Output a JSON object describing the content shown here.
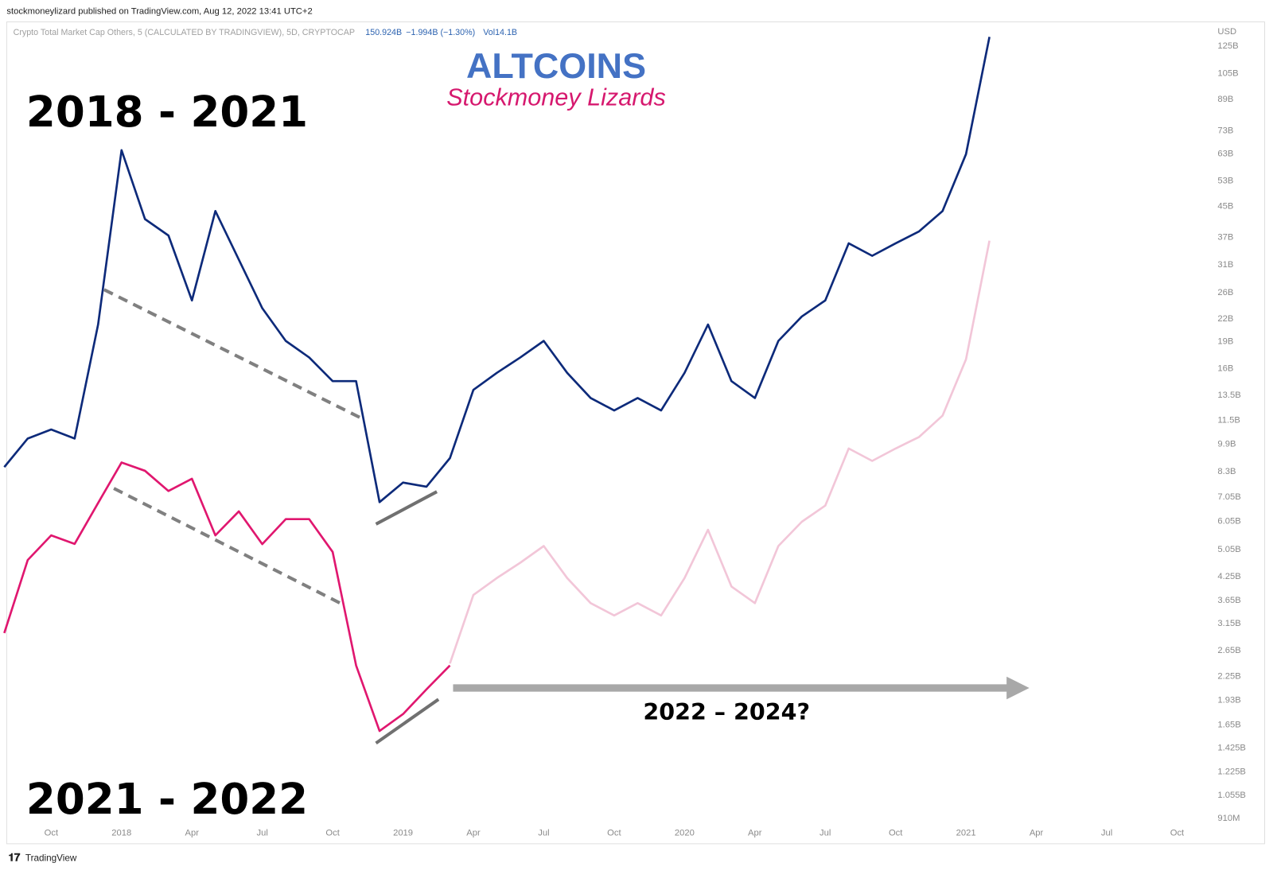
{
  "chart_data": {
    "type": "line",
    "published": "stockmoneylizard published on TradingView.com, Aug 12, 2022 13:41 UTC+2",
    "symbol": "Crypto Total Market Cap Others, 5 (CALCULATED BY TRADINGVIEW), 5D, CRYPTOCAP",
    "last": "150.924B",
    "change": "−1.994B (−1.30%)",
    "volume": "Vol14.1B",
    "title": "ALTCOINS",
    "subtitle": "Stockmoney Lizards",
    "annotations": [
      "2022 – 2024?"
    ],
    "footer": "TradingView",
    "y_unit": "USD",
    "log_scale": true,
    "grid": false,
    "x": [
      "2017-08",
      "2017-09",
      "2017-10",
      "2017-11",
      "2017-12",
      "2018-01",
      "2018-02",
      "2018-03",
      "2018-04",
      "2018-05",
      "2018-06",
      "2018-07",
      "2018-08",
      "2018-09",
      "2018-10",
      "2018-11",
      "2018-12",
      "2019-01",
      "2019-02",
      "2019-03",
      "2019-04",
      "2019-05",
      "2019-06",
      "2019-07",
      "2019-08",
      "2019-09",
      "2019-10",
      "2019-11",
      "2019-12",
      "2020-01",
      "2020-02",
      "2020-03",
      "2020-04",
      "2020-05",
      "2020-06",
      "2020-07",
      "2020-08",
      "2020-09",
      "2020-10",
      "2020-11",
      "2020-12",
      "2021-01",
      "2021-02"
    ],
    "xlim": [
      "2017-08",
      "2021-11"
    ],
    "xticks": [
      {
        "value": "2017-10",
        "label": "Oct"
      },
      {
        "value": "2018-01",
        "label": "2018"
      },
      {
        "value": "2018-04",
        "label": "Apr"
      },
      {
        "value": "2018-07",
        "label": "Jul"
      },
      {
        "value": "2018-10",
        "label": "Oct"
      },
      {
        "value": "2019-01",
        "label": "2019"
      },
      {
        "value": "2019-04",
        "label": "Apr"
      },
      {
        "value": "2019-07",
        "label": "Jul"
      },
      {
        "value": "2019-10",
        "label": "Oct"
      },
      {
        "value": "2020-01",
        "label": "2020"
      },
      {
        "value": "2020-04",
        "label": "Apr"
      },
      {
        "value": "2020-07",
        "label": "Jul"
      },
      {
        "value": "2020-10",
        "label": "Oct"
      },
      {
        "value": "2021-01",
        "label": "2021"
      },
      {
        "value": "2021-04",
        "label": "Apr"
      },
      {
        "value": "2021-07",
        "label": "Jul"
      },
      {
        "value": "2021-10",
        "label": "Oct"
      }
    ],
    "ylim": [
      770000000,
      143000000000
    ],
    "yticks": [
      {
        "value": 125000000000,
        "label": "125B"
      },
      {
        "value": 105000000000,
        "label": "105B"
      },
      {
        "value": 89000000000,
        "label": "89B"
      },
      {
        "value": 73000000000,
        "label": "73B"
      },
      {
        "value": 63000000000,
        "label": "63B"
      },
      {
        "value": 53000000000,
        "label": "53B"
      },
      {
        "value": 45000000000,
        "label": "45B"
      },
      {
        "value": 37000000000,
        "label": "37B"
      },
      {
        "value": 31000000000,
        "label": "31B"
      },
      {
        "value": 26000000000,
        "label": "26B"
      },
      {
        "value": 22000000000,
        "label": "22B"
      },
      {
        "value": 19000000000,
        "label": "19B"
      },
      {
        "value": 16000000000,
        "label": "16B"
      },
      {
        "value": 13500000000,
        "label": "13.5B"
      },
      {
        "value": 11500000000,
        "label": "11.5B"
      },
      {
        "value": 9900000000,
        "label": "9.9B"
      },
      {
        "value": 8300000000,
        "label": "8.3B"
      },
      {
        "value": 7050000000,
        "label": "7.05B"
      },
      {
        "value": 6050000000,
        "label": "6.05B"
      },
      {
        "value": 5050000000,
        "label": "5.05B"
      },
      {
        "value": 4250000000,
        "label": "4.25B"
      },
      {
        "value": 3650000000,
        "label": "3.65B"
      },
      {
        "value": 3150000000,
        "label": "3.15B"
      },
      {
        "value": 2650000000,
        "label": "2.65B"
      },
      {
        "value": 2250000000,
        "label": "2.25B"
      },
      {
        "value": 1930000000,
        "label": "1.93B"
      },
      {
        "value": 1650000000,
        "label": "1.65B"
      },
      {
        "value": 1425000000,
        "label": "1.425B"
      },
      {
        "value": 1225000000,
        "label": "1.225B"
      },
      {
        "value": 1055000000,
        "label": "1.055B"
      },
      {
        "value": 910000000,
        "label": "910M"
      }
    ],
    "series": [
      {
        "name": "2018 - 2021",
        "color": "#0d2a7a",
        "values": [
          8500000000,
          10200000000,
          10800000000,
          10200000000,
          21100000000,
          64100000000,
          41300000000,
          37200000000,
          24600000000,
          43500000000,
          31900000000,
          23400000000,
          19000000000,
          17100000000,
          14700000000,
          14700000000,
          6800000000,
          7700000000,
          7500000000,
          9000000000,
          13900000000,
          15500000000,
          17100000000,
          19000000000,
          15500000000,
          13200000000,
          12200000000,
          13200000000,
          12200000000,
          15500000000,
          21100000000,
          14700000000,
          13200000000,
          19000000000,
          22200000000,
          24600000000,
          35400000000,
          32700000000,
          35400000000,
          38200000000,
          43500000000,
          62500000000,
          132000000000
        ]
      },
      {
        "name": "2021 - 2022",
        "color": "#e0176f",
        "values": [
          2950000000,
          4700000000,
          5500000000,
          5210000000,
          6760000000,
          8750000000,
          8300000000,
          7300000000,
          7890000000,
          5500000000,
          6410000000,
          5200000000,
          6100000000,
          6100000000,
          4950000000,
          2400000000,
          1580000000,
          1760000000,
          2060000000,
          2400000000,
          null,
          null,
          null,
          null,
          null,
          null,
          null,
          null,
          null,
          null,
          null,
          null,
          null,
          null,
          null,
          null,
          null,
          null,
          null,
          null,
          null,
          null,
          null
        ]
      },
      {
        "color": "#f2c6d8",
        "values": [
          null,
          null,
          null,
          null,
          null,
          null,
          null,
          null,
          null,
          null,
          null,
          null,
          null,
          null,
          null,
          null,
          null,
          null,
          null,
          2430000000,
          3760000000,
          4190000000,
          4620000000,
          5140000000,
          4190000000,
          3570000000,
          3300000000,
          3570000000,
          3300000000,
          4190000000,
          5700000000,
          3970000000,
          3570000000,
          5140000000,
          6000000000,
          6650000000,
          9570000000,
          8840000000,
          9570000000,
          10300000000,
          11800000000,
          16900000000,
          36000000000
        ]
      }
    ]
  }
}
